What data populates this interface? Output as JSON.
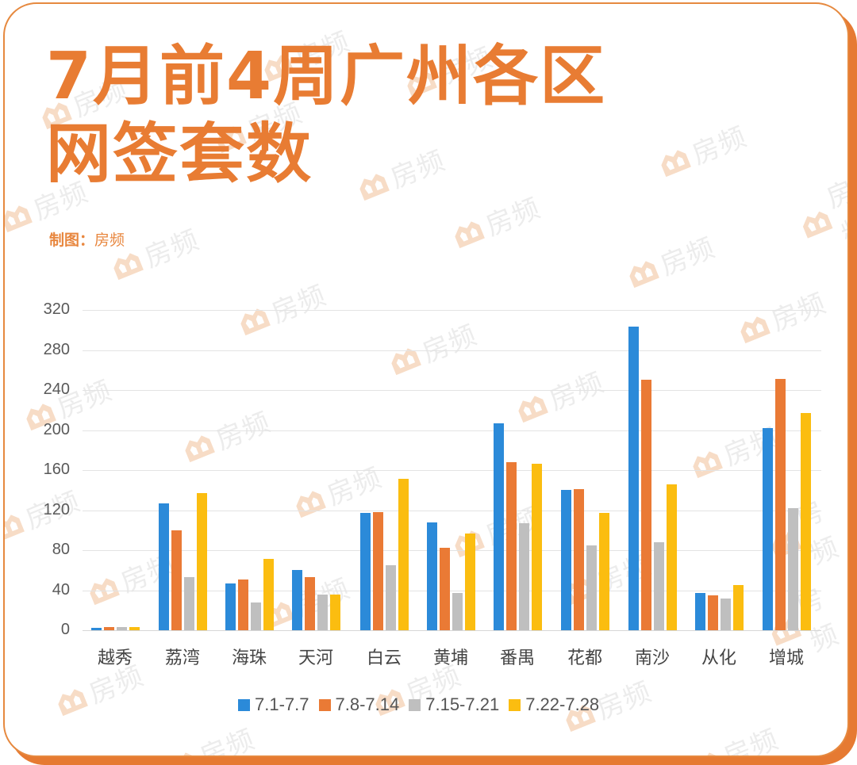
{
  "header": {
    "title_line1": "7月前4周广州各区",
    "title_line2": "网签套数",
    "credit_label": "制图：",
    "credit_value": "房频"
  },
  "watermark": {
    "text": "房频"
  },
  "colors": {
    "accent": "#e87c33",
    "series": [
      "#2b8ad9",
      "#ea7a35",
      "#bfbfbf",
      "#fbbd10"
    ]
  },
  "chart_data": {
    "type": "bar",
    "title": "7月前4周广州各区网签套数",
    "xlabel": "",
    "ylabel": "",
    "ylim": [
      0,
      320
    ],
    "yticks": [
      0,
      40,
      80,
      120,
      160,
      200,
      240,
      280,
      320
    ],
    "grid": true,
    "legend_position": "bottom",
    "categories": [
      "越秀",
      "荔湾",
      "海珠",
      "天河",
      "白云",
      "黄埔",
      "番禺",
      "花都",
      "南沙",
      "从化",
      "增城"
    ],
    "series": [
      {
        "name": "7.1-7.7",
        "color": "#2b8ad9",
        "values": [
          2,
          127,
          47,
          60,
          117,
          108,
          207,
          140,
          303,
          37,
          202
        ]
      },
      {
        "name": "7.8-7.14",
        "color": "#ea7a35",
        "values": [
          3,
          100,
          51,
          53,
          118,
          82,
          168,
          141,
          250,
          35,
          251
        ]
      },
      {
        "name": "7.15-7.21",
        "color": "#bfbfbf",
        "values": [
          3,
          53,
          28,
          36,
          65,
          37,
          107,
          85,
          88,
          32,
          122
        ]
      },
      {
        "name": "7.22-7.28",
        "color": "#fbbd10",
        "values": [
          3,
          137,
          71,
          36,
          151,
          97,
          166,
          117,
          146,
          45,
          217
        ]
      }
    ]
  }
}
